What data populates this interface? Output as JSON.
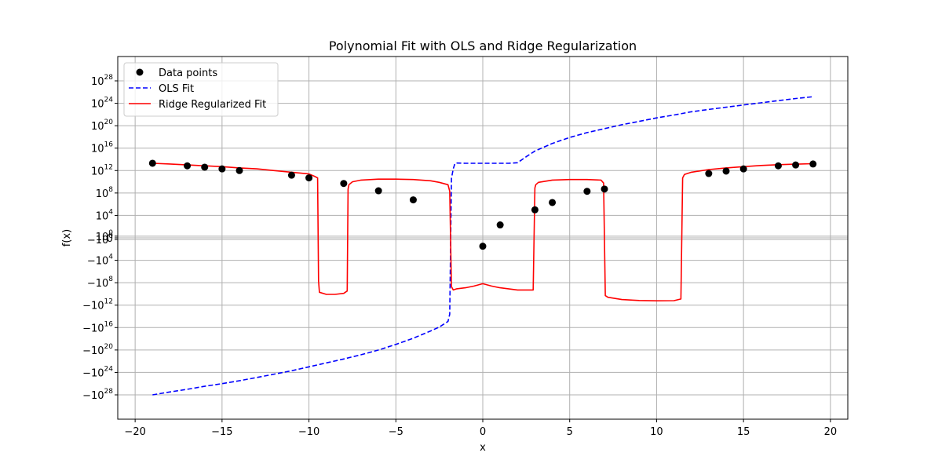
{
  "chart_data": {
    "type": "line",
    "title": "Polynomial Fit with OLS and Ridge Regularization",
    "xlabel": "x",
    "ylabel": "f(x)",
    "xlim": [
      -21,
      21
    ],
    "ylim": [
      -1e+31,
      1e+31
    ],
    "yscale": "symlog",
    "grid": true,
    "legend_position": "top-left",
    "x_ticks": [
      -20,
      -15,
      -10,
      -5,
      0,
      5,
      10,
      15,
      20
    ],
    "x_tick_labels": [
      "−20",
      "−15",
      "−10",
      "−5",
      "0",
      "5",
      "10",
      "15",
      "20"
    ],
    "y_ticks": [
      {
        "exp": 28,
        "sign": 1,
        "label": "28"
      },
      {
        "exp": 24,
        "sign": 1,
        "label": "24"
      },
      {
        "exp": 20,
        "sign": 1,
        "label": "20"
      },
      {
        "exp": 16,
        "sign": 1,
        "label": "16"
      },
      {
        "exp": 12,
        "sign": 1,
        "label": "12"
      },
      {
        "exp": 8,
        "sign": 1,
        "label": "8"
      },
      {
        "exp": 4,
        "sign": 1,
        "label": "4"
      },
      {
        "exp": 0,
        "sign": 1,
        "label": "0"
      },
      {
        "exp": 0,
        "sign": -1,
        "label": "0"
      },
      {
        "exp": 4,
        "sign": -1,
        "label": "4"
      },
      {
        "exp": 8,
        "sign": -1,
        "label": "8"
      },
      {
        "exp": 12,
        "sign": -1,
        "label": "12"
      },
      {
        "exp": 16,
        "sign": -1,
        "label": "16"
      },
      {
        "exp": 20,
        "sign": -1,
        "label": "20"
      },
      {
        "exp": 24,
        "sign": -1,
        "label": "24"
      },
      {
        "exp": 28,
        "sign": -1,
        "label": "28"
      }
    ],
    "y_tick_zero_label": "0",
    "series": [
      {
        "name": "Data points",
        "kind": "scatter",
        "color": "#000000",
        "x": [
          -19,
          -17,
          -16,
          -15,
          -14,
          -11,
          -10,
          -8,
          -6,
          -4,
          0,
          1,
          3,
          4,
          6,
          7,
          13,
          14,
          15,
          17,
          18,
          19
        ],
        "y": [
          20000000000000.0,
          7000000000000.0,
          4000000000000.0,
          2000000000000.0,
          1000000000000.0,
          150000000000.0,
          50000000000.0,
          5000000000.0,
          250000000.0,
          6000000.0,
          -30.0,
          200.0,
          100000.0,
          2000000.0,
          200000000.0,
          500000000.0,
          300000000000.0,
          800000000000.0,
          2000000000000.0,
          7000000000000.0,
          10000000000000.0,
          15000000000000.0
        ]
      },
      {
        "name": "OLS Fit",
        "kind": "line",
        "style": "dashed",
        "color": "#0000ff",
        "x": [
          -19,
          -18,
          -17,
          -16,
          -15,
          -14,
          -13,
          -12,
          -11,
          -10,
          -9,
          -8,
          -7,
          -6,
          -5,
          -4,
          -3,
          -2.5,
          -2,
          -1.9,
          -1.8,
          -1.7,
          -1.6,
          -1.5,
          -1,
          0,
          1,
          1.5,
          2,
          2.5,
          3,
          4,
          5,
          6,
          7,
          8,
          9,
          10,
          11,
          12,
          13,
          14,
          15,
          16,
          17,
          18,
          19
        ],
        "y": [
          -1e+28,
          -3e+27,
          -1e+27,
          -3e+26,
          -1e+26,
          -3e+25,
          -8e+24,
          -2e+24,
          -5e+23,
          -1e+23,
          -2e+22,
          -4e+21,
          -7e+20,
          -1e+20,
          -1e+19,
          -8e+17,
          -4e+16,
          -8000000000000000.0,
          -800000000000000.0,
          -40000000000000.0,
          40000000000.0,
          2000000000000.0,
          20000000000000.0,
          22000000000000.0,
          20000000000000.0,
          20000000000000.0,
          20000000000000.0,
          20000000000000.0,
          25000000000000.0,
          300000000000000.0,
          3000000000000000.0,
          7e+16,
          8e+17,
          6e+18,
          3e+19,
          1.5e+20,
          6e+20,
          2.5e+21,
          8e+21,
          3e+22,
          8e+22,
          2e+23,
          5e+23,
          1.2e+24,
          3e+24,
          7e+24,
          1.5e+25
        ]
      },
      {
        "name": "Ridge Regularized Fit",
        "kind": "line",
        "style": "solid",
        "color": "#ff0000",
        "x": [
          -19,
          -18,
          -17,
          -16,
          -15,
          -14,
          -13,
          -12,
          -11,
          -10,
          -9.7,
          -9.5,
          -9.45,
          -9.4,
          -9,
          -8.5,
          -8,
          -7.8,
          -7.75,
          -7.7,
          -7.5,
          -7,
          -6,
          -5,
          -4,
          -3,
          -2.5,
          -2,
          -1.9,
          -1.8,
          -1.7,
          -1.5,
          -1,
          -0.5,
          0,
          0.5,
          1,
          2,
          2.9,
          3.0,
          3.05,
          3.2,
          4,
          5,
          6,
          6.8,
          6.95,
          7.05,
          7.2,
          8,
          9,
          10,
          11,
          11.4,
          11.5,
          11.6,
          12,
          13,
          14,
          15,
          16,
          17,
          18,
          19
        ],
        "y": [
          20000000000000.0,
          15000000000000.0,
          10000000000000.0,
          7000000000000.0,
          5000000000000.0,
          3000000000000.0,
          2000000000000.0,
          1000000000000.0,
          500000000000.0,
          250000000000.0,
          100000000000.0,
          50000000000.0,
          -50000000.0,
          -5000000000.0,
          -12000000000.0,
          -12000000000.0,
          -8000000000.0,
          -3000000000.0,
          500000000.0,
          3000000000.0,
          10000000000.0,
          20000000000.0,
          30000000000.0,
          30000000000.0,
          25000000000.0,
          15000000000.0,
          8000000000.0,
          3000000000.0,
          200000000.0,
          -500000000.0,
          -2000000000.0,
          -1200000000.0,
          -800000000.0,
          -400000000.0,
          -150000000.0,
          -400000000.0,
          -800000000.0,
          -2000000000.0,
          -2000000000.0,
          800000000.0,
          3000000000.0,
          8000000000.0,
          20000000000.0,
          25000000000.0,
          25000000000.0,
          20000000000.0,
          6000000000.0,
          -20000000000.0,
          -40000000000.0,
          -100000000000.0,
          -150000000000.0,
          -170000000000.0,
          -160000000000.0,
          -80000000000.0,
          50000000000.0,
          200000000000.0,
          500000000000.0,
          1500000000000.0,
          3000000000000.0,
          5000000000000.0,
          8000000000000.0,
          11000000000000.0,
          14000000000000.0,
          17000000000000.0
        ]
      }
    ]
  }
}
